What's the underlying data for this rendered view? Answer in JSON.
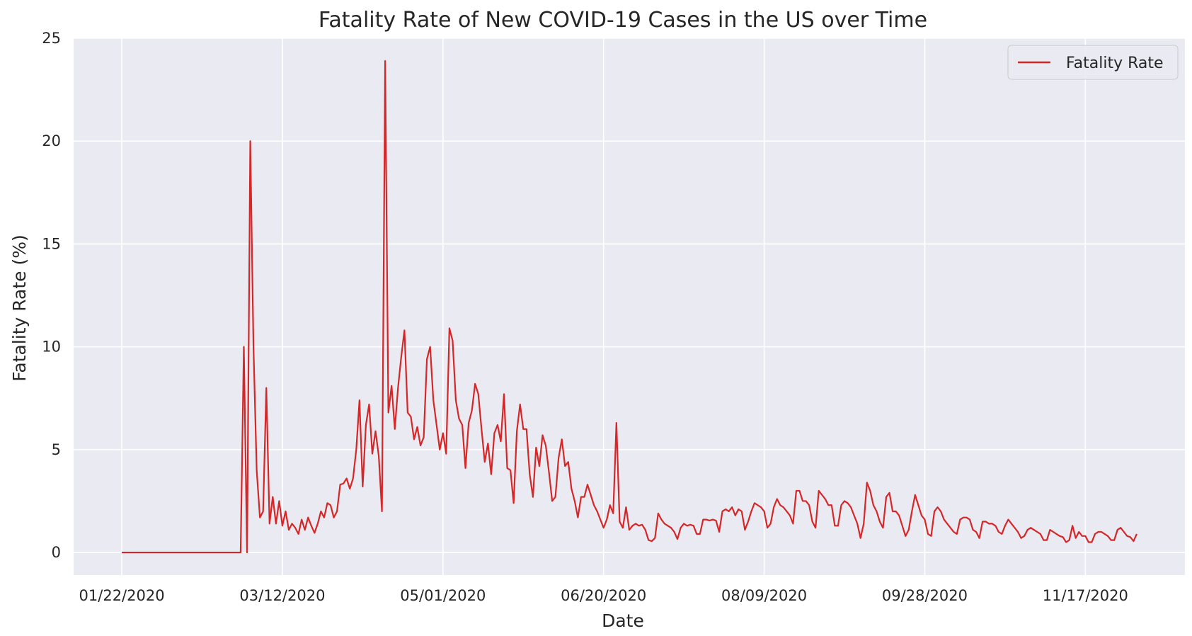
{
  "chart_data": {
    "type": "line",
    "title": "Fatality Rate of New COVID-19 Cases in the US over Time",
    "xlabel": "Date",
    "ylabel": "Fatality Rate (%)",
    "ylim": [
      -1.1,
      25
    ],
    "yticks": [
      0,
      5,
      10,
      15,
      20,
      25
    ],
    "xlim": [
      "2020-01-07",
      "2020-12-18"
    ],
    "xticks": [
      "01/22/2020",
      "03/12/2020",
      "05/01/2020",
      "06/20/2020",
      "08/09/2020",
      "09/28/2020",
      "11/17/2020"
    ],
    "grid": true,
    "legend": {
      "position": "upper-right",
      "entries": [
        "Fatality Rate"
      ]
    },
    "colors": {
      "line": "#d62728",
      "plot_bg": "#eaeaf2",
      "grid": "#ffffff"
    },
    "series": [
      {
        "name": "Fatality Rate",
        "x": [
          "2020-01-22",
          "2020-02-28",
          "2020-02-29",
          "2020-03-01",
          "2020-03-02",
          "2020-03-03",
          "2020-03-04",
          "2020-03-05",
          "2020-03-06",
          "2020-03-07",
          "2020-03-08",
          "2020-03-09",
          "2020-03-10",
          "2020-03-11",
          "2020-03-12",
          "2020-03-13",
          "2020-03-14",
          "2020-03-15",
          "2020-03-16",
          "2020-03-17",
          "2020-03-18",
          "2020-03-19",
          "2020-03-20",
          "2020-03-21",
          "2020-03-22",
          "2020-03-23",
          "2020-03-24",
          "2020-03-25",
          "2020-03-26",
          "2020-03-27",
          "2020-03-28",
          "2020-03-29",
          "2020-03-30",
          "2020-03-31",
          "2020-04-01",
          "2020-04-02",
          "2020-04-03",
          "2020-04-04",
          "2020-04-05",
          "2020-04-06",
          "2020-04-07",
          "2020-04-08",
          "2020-04-09",
          "2020-04-10",
          "2020-04-11",
          "2020-04-12",
          "2020-04-13",
          "2020-04-14",
          "2020-04-15",
          "2020-04-16",
          "2020-04-17",
          "2020-04-18",
          "2020-04-19",
          "2020-04-20",
          "2020-04-21",
          "2020-04-22",
          "2020-04-23",
          "2020-04-24",
          "2020-04-25",
          "2020-04-26",
          "2020-04-27",
          "2020-04-28",
          "2020-04-29",
          "2020-04-30",
          "2020-05-01",
          "2020-05-02",
          "2020-05-03",
          "2020-05-04",
          "2020-05-05",
          "2020-05-06",
          "2020-05-07",
          "2020-05-08",
          "2020-05-09",
          "2020-05-10",
          "2020-05-11",
          "2020-05-12",
          "2020-05-13",
          "2020-05-14",
          "2020-05-15",
          "2020-05-16",
          "2020-05-17",
          "2020-05-18",
          "2020-05-19",
          "2020-05-20",
          "2020-05-21",
          "2020-05-22",
          "2020-05-23",
          "2020-05-24",
          "2020-05-25",
          "2020-05-26",
          "2020-05-27",
          "2020-05-28",
          "2020-05-29",
          "2020-05-30",
          "2020-05-31",
          "2020-06-01",
          "2020-06-02",
          "2020-06-03",
          "2020-06-04",
          "2020-06-05",
          "2020-06-06",
          "2020-06-07",
          "2020-06-08",
          "2020-06-09",
          "2020-06-10",
          "2020-06-11",
          "2020-06-12",
          "2020-06-13",
          "2020-06-14",
          "2020-06-15",
          "2020-06-16",
          "2020-06-17",
          "2020-06-18",
          "2020-06-19",
          "2020-06-20",
          "2020-06-21",
          "2020-06-22",
          "2020-06-23",
          "2020-06-24",
          "2020-06-25",
          "2020-06-26",
          "2020-06-27",
          "2020-06-28",
          "2020-06-29",
          "2020-06-30",
          "2020-07-01",
          "2020-07-02",
          "2020-07-03",
          "2020-07-04",
          "2020-07-05",
          "2020-07-06",
          "2020-07-07",
          "2020-07-08",
          "2020-07-09",
          "2020-07-10",
          "2020-07-11",
          "2020-07-12",
          "2020-07-13",
          "2020-07-14",
          "2020-07-15",
          "2020-07-16",
          "2020-07-17",
          "2020-07-18",
          "2020-07-19",
          "2020-07-20",
          "2020-07-21",
          "2020-07-22",
          "2020-07-23",
          "2020-07-24",
          "2020-07-25",
          "2020-07-26",
          "2020-07-27",
          "2020-07-28",
          "2020-07-29",
          "2020-07-30",
          "2020-07-31",
          "2020-08-01",
          "2020-08-02",
          "2020-08-03",
          "2020-08-04",
          "2020-08-05",
          "2020-08-06",
          "2020-08-07",
          "2020-08-08",
          "2020-08-09",
          "2020-08-10",
          "2020-08-11",
          "2020-08-12",
          "2020-08-13",
          "2020-08-14",
          "2020-08-15",
          "2020-08-16",
          "2020-08-17",
          "2020-08-18",
          "2020-08-19",
          "2020-08-20",
          "2020-08-21",
          "2020-08-22",
          "2020-08-23",
          "2020-08-24",
          "2020-08-25",
          "2020-08-26",
          "2020-08-27",
          "2020-08-28",
          "2020-08-29",
          "2020-08-30",
          "2020-08-31",
          "2020-09-01",
          "2020-09-02",
          "2020-09-03",
          "2020-09-04",
          "2020-09-05",
          "2020-09-06",
          "2020-09-07",
          "2020-09-08",
          "2020-09-09",
          "2020-09-10",
          "2020-09-11",
          "2020-09-12",
          "2020-09-13",
          "2020-09-14",
          "2020-09-15",
          "2020-09-16",
          "2020-09-17",
          "2020-09-18",
          "2020-09-19",
          "2020-09-20",
          "2020-09-21",
          "2020-09-22",
          "2020-09-23",
          "2020-09-24",
          "2020-09-25",
          "2020-09-26",
          "2020-09-27",
          "2020-09-28",
          "2020-09-29",
          "2020-09-30",
          "2020-10-01",
          "2020-10-02",
          "2020-10-03",
          "2020-10-04",
          "2020-10-05",
          "2020-10-06",
          "2020-10-07",
          "2020-10-08",
          "2020-10-09",
          "2020-10-10",
          "2020-10-11",
          "2020-10-12",
          "2020-10-13",
          "2020-10-14",
          "2020-10-15",
          "2020-10-16",
          "2020-10-17",
          "2020-10-18",
          "2020-10-19",
          "2020-10-20",
          "2020-10-21",
          "2020-10-22",
          "2020-10-23",
          "2020-10-24",
          "2020-10-25",
          "2020-10-26",
          "2020-10-27",
          "2020-10-28",
          "2020-10-29",
          "2020-10-30",
          "2020-10-31",
          "2020-11-01",
          "2020-11-02",
          "2020-11-03",
          "2020-11-04",
          "2020-11-05",
          "2020-11-06",
          "2020-11-07",
          "2020-11-08",
          "2020-11-09",
          "2020-11-10",
          "2020-11-11",
          "2020-11-12",
          "2020-11-13",
          "2020-11-14",
          "2020-11-15",
          "2020-11-16",
          "2020-11-17",
          "2020-11-18",
          "2020-11-19",
          "2020-11-20",
          "2020-11-21",
          "2020-11-22",
          "2020-11-23",
          "2020-11-24",
          "2020-11-25",
          "2020-11-26",
          "2020-11-27",
          "2020-11-28",
          "2020-11-29",
          "2020-11-30",
          "2020-12-01",
          "2020-12-02",
          "2020-12-03"
        ],
        "values": [
          0.0,
          0.0,
          10.0,
          0.0,
          20.0,
          10.0,
          4.0,
          1.7,
          2.0,
          8.0,
          1.4,
          2.7,
          1.4,
          2.5,
          1.3,
          2.0,
          1.1,
          1.4,
          1.2,
          0.9,
          1.6,
          1.1,
          1.7,
          1.3,
          0.95,
          1.4,
          2.0,
          1.7,
          2.4,
          2.3,
          1.7,
          2.0,
          3.3,
          3.35,
          3.6,
          3.1,
          3.6,
          5.0,
          7.4,
          3.2,
          6.2,
          7.2,
          4.8,
          5.9,
          4.7,
          2.0,
          23.9,
          6.8,
          8.1,
          6.0,
          8.0,
          9.5,
          10.8,
          6.8,
          6.6,
          5.5,
          6.1,
          5.2,
          5.6,
          9.4,
          10.0,
          7.4,
          6.2,
          5.0,
          5.8,
          4.8,
          10.9,
          10.3,
          7.4,
          6.5,
          6.2,
          4.1,
          6.3,
          6.9,
          8.2,
          7.7,
          6.0,
          4.4,
          5.3,
          3.8,
          5.8,
          6.2,
          5.4,
          7.7,
          4.1,
          4.0,
          2.4,
          5.9,
          7.2,
          6.0,
          6.0,
          3.8,
          2.7,
          5.1,
          4.2,
          5.7,
          5.2,
          3.9,
          2.5,
          2.7,
          4.6,
          5.5,
          4.2,
          4.4,
          3.1,
          2.5,
          1.7,
          2.7,
          2.7,
          3.3,
          2.8,
          2.3,
          2.0,
          1.6,
          1.2,
          1.6,
          2.3,
          1.9,
          6.3,
          1.5,
          1.2,
          2.2,
          1.1,
          1.3,
          1.4,
          1.3,
          1.35,
          1.1,
          0.6,
          0.55,
          0.7,
          1.9,
          1.6,
          1.4,
          1.3,
          1.2,
          1.0,
          0.65,
          1.2,
          1.4,
          1.3,
          1.35,
          1.3,
          0.9,
          0.9,
          1.6,
          1.6,
          1.55,
          1.6,
          1.55,
          1.0,
          2.0,
          2.1,
          2.0,
          2.2,
          1.8,
          2.1,
          2.0,
          1.1,
          1.5,
          2.0,
          2.4,
          2.3,
          2.2,
          2.0,
          1.2,
          1.4,
          2.2,
          2.6,
          2.3,
          2.2,
          2.0,
          1.8,
          1.4,
          3.0,
          3.0,
          2.5,
          2.5,
          2.3,
          1.5,
          1.2,
          3.0,
          2.8,
          2.6,
          2.3,
          2.3,
          1.3,
          1.3,
          2.3,
          2.5,
          2.4,
          2.2,
          1.8,
          1.4,
          0.7,
          1.4,
          3.4,
          3.0,
          2.3,
          2.0,
          1.5,
          1.2,
          2.7,
          2.9,
          2.0,
          2.0,
          1.8,
          1.3,
          0.8,
          1.1,
          2.0,
          2.8,
          2.3,
          1.8,
          1.6,
          0.9,
          0.8,
          2.0,
          2.2,
          2.0,
          1.6,
          1.4,
          1.2,
          1.0,
          0.9,
          1.6,
          1.7,
          1.7,
          1.6,
          1.1,
          1.0,
          0.7,
          1.5,
          1.5,
          1.4,
          1.4,
          1.3,
          1.0,
          0.9,
          1.3,
          1.6,
          1.4,
          1.2,
          1.0,
          0.7,
          0.8,
          1.1,
          1.2,
          1.1,
          1.0,
          0.9,
          0.6,
          0.6,
          1.1,
          1.0,
          0.9,
          0.8,
          0.75,
          0.5,
          0.6,
          1.3,
          0.7,
          1.0,
          0.8,
          0.8,
          0.5,
          0.5,
          0.9,
          1.0,
          1.0,
          0.9,
          0.8,
          0.6,
          0.6,
          1.1,
          1.2,
          1.0,
          0.8,
          0.75,
          0.55,
          0.9
        ]
      }
    ]
  }
}
